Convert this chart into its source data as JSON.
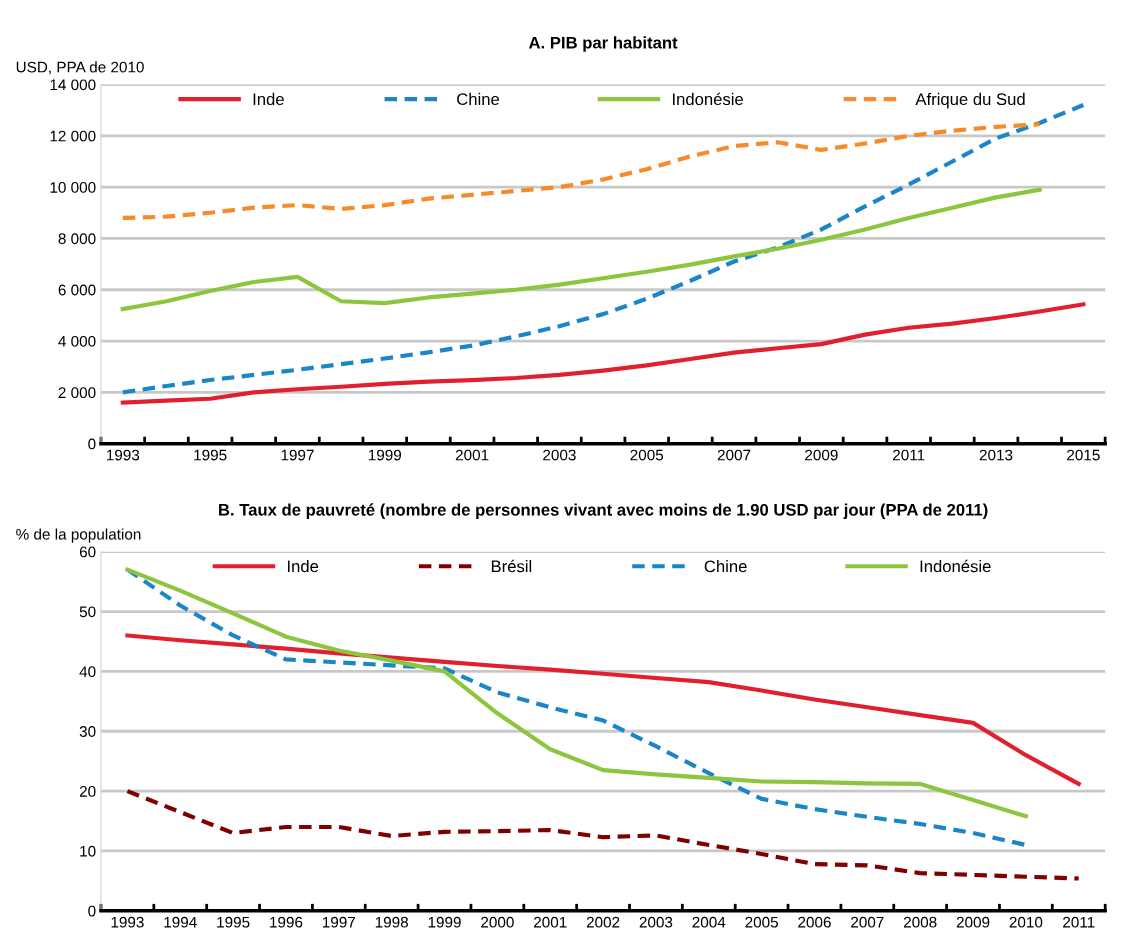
{
  "chart_data": [
    {
      "type": "line",
      "title": "A. PIB par habitant",
      "ylabel": "USD, PPA de 2010",
      "categories": [
        "1993",
        null,
        "1995",
        null,
        "1997",
        null,
        "1999",
        null,
        "2001",
        null,
        "2003",
        null,
        "2005",
        null,
        "2007",
        null,
        "2009",
        null,
        "2011",
        null,
        "2013",
        null,
        "2015"
      ],
      "series": [
        {
          "name": "Inde",
          "color": "#e0202e",
          "line_style": "solid",
          "values": [
            1600,
            1680,
            1750,
            2000,
            2120,
            2220,
            2330,
            2420,
            2480,
            2560,
            2680,
            2850,
            3050,
            3300,
            3550,
            3720,
            3880,
            4250,
            4520,
            4680,
            4900,
            5150,
            5430
          ]
        },
        {
          "name": "Chine",
          "color": "#1a85c8",
          "line_style": "dashed",
          "values": [
            2000,
            2250,
            2480,
            2680,
            2880,
            3100,
            3320,
            3560,
            3820,
            4180,
            4580,
            5050,
            5650,
            6350,
            7100,
            7650,
            8350,
            9250,
            10100,
            11000,
            11900,
            12500,
            13200
          ]
        },
        {
          "name": "Indonésie",
          "color": "#8cc63f",
          "line_style": "solid",
          "values": [
            5250,
            5550,
            5950,
            6300,
            6500,
            5550,
            5480,
            5700,
            5850,
            6000,
            6200,
            6450,
            6700,
            6980,
            7300,
            7600,
            7950,
            8350,
            8800,
            9200,
            9600,
            9900,
            null
          ]
        },
        {
          "name": "Afrique du Sud",
          "color": "#f68b2a",
          "line_style": "dashed",
          "values": [
            8800,
            8850,
            9000,
            9200,
            9300,
            9150,
            9300,
            9550,
            9700,
            9850,
            10000,
            10300,
            10700,
            11200,
            11600,
            11750,
            11450,
            11700,
            12000,
            12200,
            12350,
            12450,
            null
          ]
        }
      ],
      "ylim": [
        0,
        14000
      ],
      "yticks": [
        {
          "value": 0,
          "label": "0"
        },
        {
          "value": 2000,
          "label": "2 000"
        },
        {
          "value": 4000,
          "label": "4 000"
        },
        {
          "value": 6000,
          "label": "6 000"
        },
        {
          "value": 8000,
          "label": "8 000"
        },
        {
          "value": 10000,
          "label": "10 000"
        },
        {
          "value": 12000,
          "label": "12 000"
        },
        {
          "value": 14000,
          "label": "14 000"
        }
      ],
      "grid": "y",
      "legend": "top",
      "marker": "none"
    },
    {
      "type": "line",
      "title": "B. Taux de pauvreté (nombre de personnes vivant avec moins de 1.90 USD par jour (PPA de 2011)",
      "ylabel": "% de la population",
      "categories": [
        "1993",
        "1994",
        "1995",
        "1996",
        "1997",
        "1998",
        "1999",
        "2000",
        "2001",
        "2002",
        "2003",
        "2004",
        "2005",
        "2006",
        "2007",
        "2008",
        "2009",
        "2010",
        "2011"
      ],
      "series": [
        {
          "name": "Inde",
          "color": "#e0202e",
          "line_style": "solid",
          "values": [
            46,
            45.2,
            44.5,
            43.8,
            43,
            42.3,
            41.6,
            40.9,
            40.3,
            39.6,
            38.9,
            38.2,
            36.8,
            35.3,
            34,
            32.7,
            31.4,
            26,
            21.2
          ]
        },
        {
          "name": "Brésil",
          "color": "#800000",
          "line_style": "dashed",
          "values": [
            20,
            16.5,
            13,
            14,
            14,
            12.5,
            13.2,
            13.3,
            13.5,
            12.3,
            12.6,
            11,
            9.5,
            7.8,
            7.6,
            6.3,
            6,
            5.7,
            5.4
          ]
        },
        {
          "name": "Chine",
          "color": "#1a85c8",
          "line_style": "dashed",
          "values": [
            57,
            51,
            46,
            42,
            41.5,
            41,
            40.5,
            36.5,
            34,
            31.8,
            27.5,
            23,
            18.7,
            17,
            15.7,
            14.5,
            13,
            11,
            null
          ]
        },
        {
          "name": "Indonésie",
          "color": "#8cc63f",
          "line_style": "solid",
          "values": [
            57,
            53.5,
            49.7,
            45.8,
            43.5,
            41.8,
            40,
            33,
            27,
            23.5,
            22.8,
            22.2,
            21.6,
            21.5,
            21.3,
            21.2,
            18.5,
            15.8,
            null
          ]
        }
      ],
      "ylim": [
        0,
        60
      ],
      "yticks": [
        0,
        10,
        20,
        30,
        40,
        50,
        60
      ],
      "grid": "y",
      "legend": "top",
      "marker": "none"
    }
  ]
}
